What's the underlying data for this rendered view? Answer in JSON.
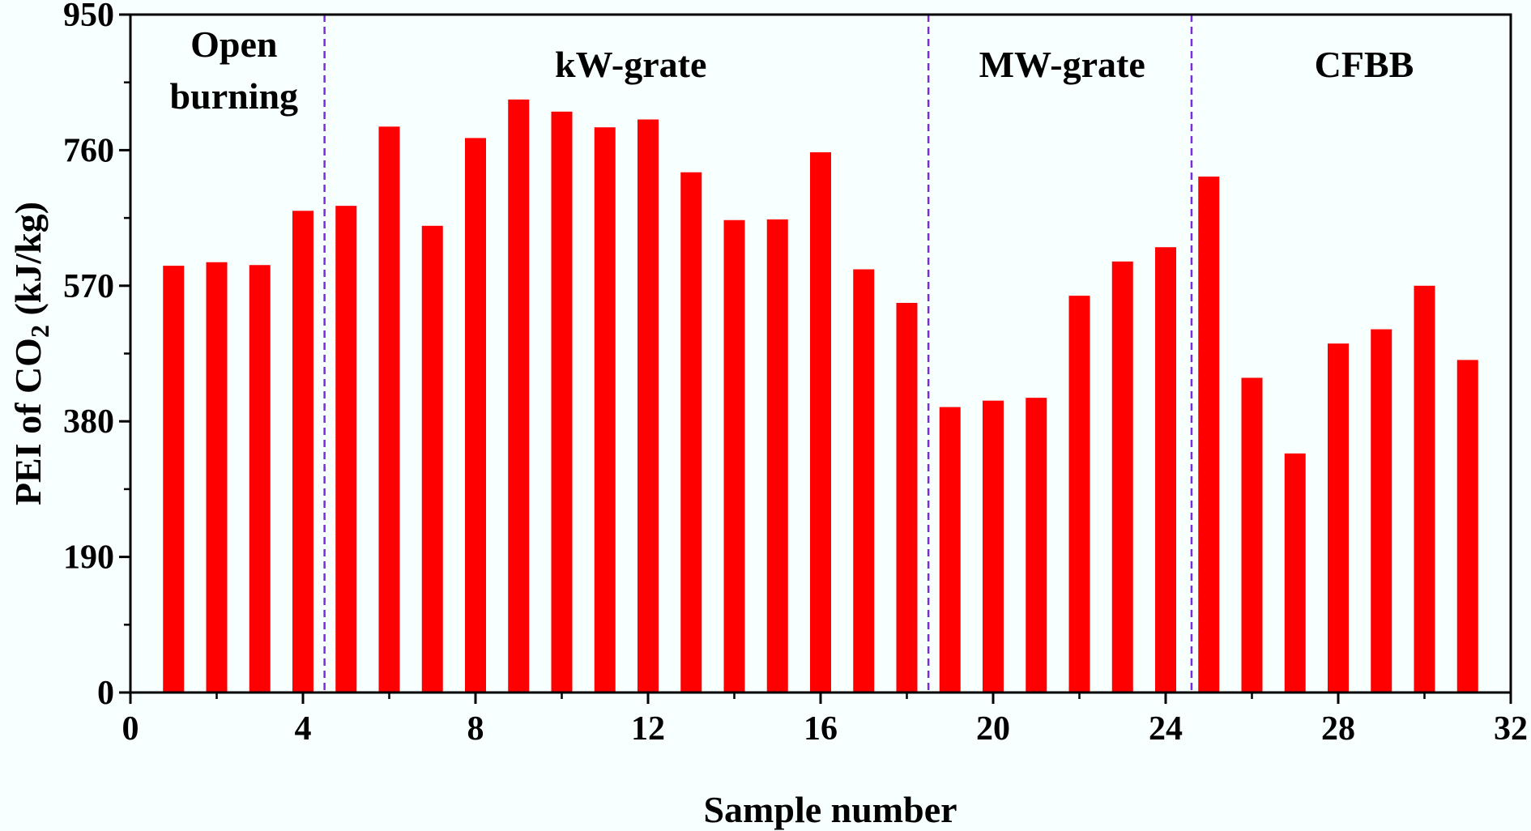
{
  "chart_data": {
    "type": "bar",
    "x": [
      1,
      2,
      3,
      4,
      5,
      6,
      7,
      8,
      9,
      10,
      11,
      12,
      13,
      14,
      15,
      16,
      17,
      18,
      19,
      20,
      21,
      22,
      23,
      24,
      25,
      26,
      27,
      28,
      29,
      30,
      31
    ],
    "values": [
      598,
      603,
      599,
      675,
      682,
      793,
      654,
      777,
      831,
      814,
      792,
      803,
      729,
      662,
      663,
      757,
      593,
      546,
      400,
      409,
      413,
      556,
      604,
      624,
      723,
      441,
      335,
      489,
      509,
      570,
      466
    ],
    "xlabel": "Sample number",
    "ylabel": {
      "prefix": "PEI of CO",
      "subscript": "2",
      "suffix": " (kJ/kg)"
    },
    "xlim": [
      0,
      32
    ],
    "ylim": [
      0,
      950
    ],
    "xticks": [
      0,
      4,
      8,
      12,
      16,
      20,
      24,
      28,
      32
    ],
    "yticks": [
      0,
      190,
      380,
      570,
      760,
      950
    ],
    "bar_color": "#ff0000",
    "divider_color": "#7b2be0",
    "dividers": [
      4.5,
      18.5,
      24.6
    ],
    "sections": [
      {
        "lines": [
          "Open",
          "burning"
        ],
        "x": 2.4
      },
      {
        "lines": [
          "kW-grate"
        ],
        "x": 11.6
      },
      {
        "lines": [
          "MW-grate"
        ],
        "x": 21.6
      },
      {
        "lines": [
          "CFBB"
        ],
        "x": 28.6
      }
    ],
    "grid": false,
    "legend": "none"
  }
}
